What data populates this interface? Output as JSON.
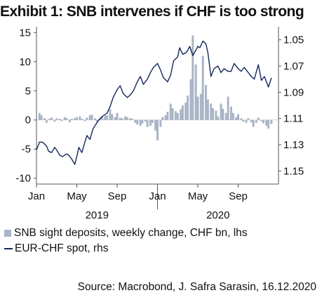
{
  "title": "Exhibit 1: SNB intervenes if CHF is too strong",
  "source": "Source: Macrobond, J. Safra Sarasin, 16.12.2020",
  "colors": {
    "bars": "#a9b4c6",
    "line": "#14285a",
    "axis": "#555555",
    "text": "#111111"
  },
  "chart_data": {
    "type": "bar+line",
    "x_range": [
      0,
      24
    ],
    "month_ticks": [
      {
        "month": 0,
        "label": "Jan"
      },
      {
        "month": 4,
        "label": "May"
      },
      {
        "month": 8,
        "label": "Sep"
      },
      {
        "month": 12,
        "label": "Jan"
      },
      {
        "month": 16,
        "label": "May"
      },
      {
        "month": 20,
        "label": "Sep"
      }
    ],
    "year_labels": [
      {
        "month": 6,
        "label": "2019"
      },
      {
        "month": 18,
        "label": "2020"
      }
    ],
    "left_axis": {
      "ylim": [
        -11,
        16
      ],
      "ticks": [
        -10,
        -5,
        0,
        5,
        10,
        15
      ]
    },
    "right_axis": {
      "ylim": [
        1.04,
        1.16
      ],
      "ticks": [
        1.05,
        1.07,
        1.09,
        1.11,
        1.13,
        1.15
      ],
      "inverted": true
    },
    "series": [
      {
        "name": "SNB sight deposits, weekly change, CHF bn, lhs",
        "kind": "bar",
        "axis": "left",
        "week_months": [
          0.3,
          0.5,
          0.8,
          1.0,
          1.3,
          1.5,
          1.8,
          2.0,
          2.3,
          2.5,
          2.8,
          3.0,
          3.3,
          3.5,
          3.8,
          4.0,
          4.3,
          4.5,
          4.8,
          5.0,
          5.3,
          5.5,
          5.8,
          6.0,
          6.3,
          6.5,
          6.8,
          7.0,
          7.3,
          7.5,
          7.8,
          8.0,
          8.3,
          8.5,
          8.8,
          9.0,
          9.3,
          9.5,
          9.8,
          10.0,
          10.3,
          10.5,
          10.8,
          11.0,
          11.3,
          11.5,
          11.8,
          12.0,
          12.3,
          12.5,
          12.8,
          13.0,
          13.3,
          13.5,
          13.8,
          14.0,
          14.3,
          14.5,
          14.8,
          15.0,
          15.3,
          15.5,
          15.8,
          16.0,
          16.3,
          16.5,
          16.8,
          17.0,
          17.3,
          17.5,
          17.8,
          18.0,
          18.3,
          18.5,
          18.8,
          19.0,
          19.3,
          19.5,
          19.8,
          20.0,
          20.3,
          20.5,
          20.8,
          21.0,
          21.3,
          21.5,
          21.8,
          22.0,
          22.3,
          22.5,
          22.8,
          23.0,
          23.3
        ],
        "values": [
          1.2,
          0.8,
          0.3,
          -0.5,
          0.2,
          0.4,
          -0.3,
          0.3,
          0.2,
          -0.2,
          0.5,
          0.3,
          -0.4,
          0.2,
          0.3,
          0.5,
          0.6,
          0.2,
          -0.2,
          0.4,
          0.8,
          0.9,
          0.3,
          -0.3,
          0.2,
          0.6,
          0.7,
          0.8,
          1.8,
          1.0,
          0.5,
          1.2,
          0.4,
          0.3,
          0.6,
          0.5,
          0.3,
          0.2,
          -0.5,
          -0.8,
          -1.0,
          -0.6,
          -0.3,
          -1.2,
          -1.0,
          -0.5,
          -1.8,
          -3.5,
          -1.2,
          0.5,
          0.8,
          1.4,
          2.8,
          2.0,
          1.5,
          1.2,
          1.8,
          2.5,
          3.0,
          4.2,
          7.0,
          14.5,
          9.5,
          4.0,
          4.5,
          11.0,
          6.0,
          3.5,
          2.8,
          2.0,
          1.6,
          0.6,
          2.8,
          1.9,
          1.2,
          4.0,
          2.3,
          1.2,
          0.5,
          1.0,
          0.3,
          -0.3,
          -0.5,
          0.3,
          -0.4,
          -1.2,
          -0.5,
          0.4,
          -0.2,
          -0.6,
          -1.0,
          -1.5,
          -0.7
        ]
      },
      {
        "name": "EUR-CHF spot, rhs",
        "kind": "line",
        "axis": "right",
        "months": [
          0,
          0.3,
          0.6,
          1.0,
          1.2,
          1.5,
          1.8,
          2.0,
          2.3,
          2.6,
          3.0,
          3.2,
          3.5,
          3.8,
          4.0,
          4.2,
          4.5,
          4.8,
          5.0,
          5.3,
          5.6,
          6.0,
          6.3,
          6.6,
          7.0,
          7.3,
          7.6,
          8.0,
          8.3,
          8.6,
          9.0,
          9.3,
          9.6,
          10.0,
          10.3,
          10.6,
          11.0,
          11.3,
          11.6,
          12.0,
          12.3,
          12.6,
          13.0,
          13.3,
          13.6,
          14.0,
          14.2,
          14.5,
          14.8,
          15.0,
          15.2,
          15.5,
          15.8,
          16.0,
          16.2,
          16.5,
          16.8,
          17.0,
          17.3,
          17.6,
          18.0,
          18.3,
          18.6,
          19.0,
          19.3,
          19.6,
          20.0,
          20.3,
          20.6,
          21.0,
          21.3,
          21.6,
          22.0,
          22.3,
          22.6,
          23.0,
          23.3
        ],
        "values": [
          1.134,
          1.128,
          1.128,
          1.131,
          1.135,
          1.136,
          1.132,
          1.134,
          1.138,
          1.139,
          1.137,
          1.138,
          1.141,
          1.145,
          1.139,
          1.132,
          1.136,
          1.128,
          1.123,
          1.126,
          1.118,
          1.113,
          1.11,
          1.108,
          1.106,
          1.101,
          1.094,
          1.088,
          1.085,
          1.091,
          1.094,
          1.092,
          1.089,
          1.082,
          1.078,
          1.084,
          1.08,
          1.075,
          1.071,
          1.068,
          1.073,
          1.079,
          1.082,
          1.077,
          1.066,
          1.063,
          1.056,
          1.061,
          1.06,
          1.058,
          1.055,
          1.062,
          1.058,
          1.055,
          1.056,
          1.051,
          1.053,
          1.06,
          1.078,
          1.072,
          1.07,
          1.075,
          1.072,
          1.074,
          1.074,
          1.068,
          1.072,
          1.074,
          1.071,
          1.075,
          1.078,
          1.08,
          1.069,
          1.081,
          1.078,
          1.086,
          1.079
        ]
      }
    ]
  }
}
